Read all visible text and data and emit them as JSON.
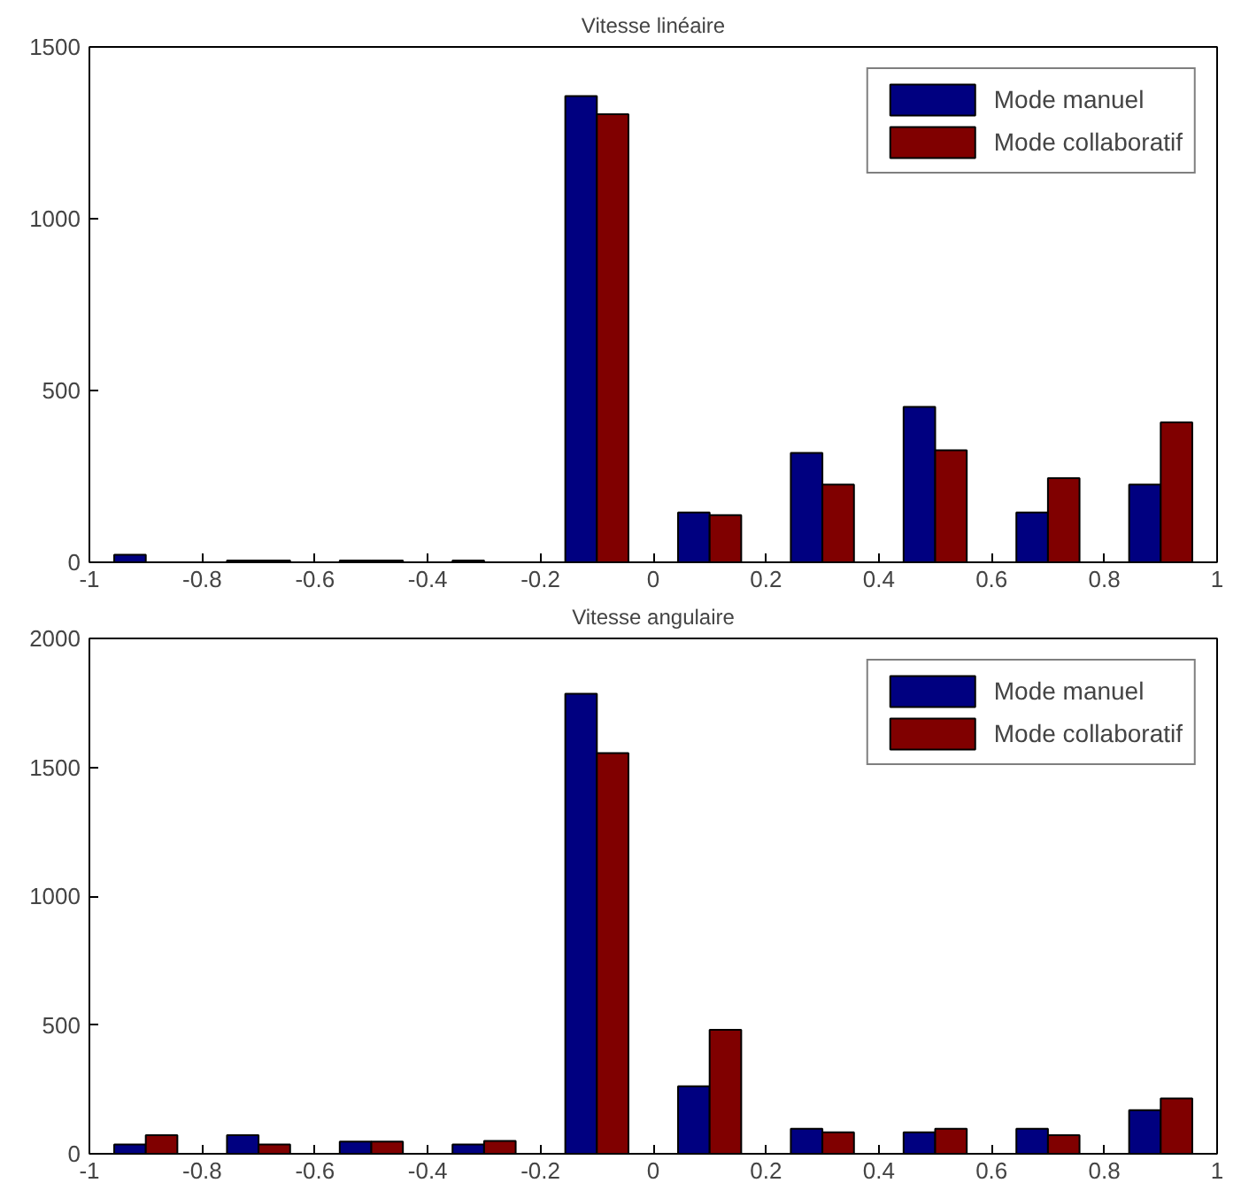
{
  "chart_data": [
    {
      "type": "bar",
      "title": "Vitesse linéaire",
      "x": [
        -0.9,
        -0.7,
        -0.5,
        -0.3,
        -0.1,
        0.1,
        0.3,
        0.5,
        0.7,
        0.9
      ],
      "xlim": [
        -1,
        1
      ],
      "xticks": [
        -1,
        -0.8,
        -0.6,
        -0.4,
        -0.2,
        0,
        0.2,
        0.4,
        0.6,
        0.8,
        1
      ],
      "ylim": [
        0,
        1500
      ],
      "yticks": [
        0,
        500,
        1000,
        1500
      ],
      "grid": false,
      "legend": "top right",
      "series": [
        {
          "name": "Mode manuel",
          "color": "#000080",
          "values": [
            22,
            5,
            5,
            5,
            1357,
            145,
            318,
            452,
            145,
            226
          ]
        },
        {
          "name": "Mode collaboratif",
          "color": "#800000",
          "values": [
            null,
            5,
            5,
            null,
            1304,
            137,
            226,
            326,
            245,
            407
          ]
        }
      ]
    },
    {
      "type": "bar",
      "title": "Vitesse angulaire",
      "x": [
        -0.9,
        -0.7,
        -0.5,
        -0.3,
        -0.1,
        0.1,
        0.3,
        0.5,
        0.7,
        0.9
      ],
      "xlim": [
        -1,
        1
      ],
      "xticks": [
        -1,
        -0.8,
        -0.6,
        -0.4,
        -0.2,
        0,
        0.2,
        0.4,
        0.6,
        0.8,
        1
      ],
      "ylim": [
        0,
        2000
      ],
      "yticks": [
        0,
        500,
        1000,
        1500,
        2000
      ],
      "grid": false,
      "legend": "top right",
      "series": [
        {
          "name": "Mode manuel",
          "color": "#000080",
          "values": [
            36,
            72,
            47,
            36,
            1785,
            262,
            97,
            83,
            97,
            169
          ]
        },
        {
          "name": "Mode collaboratif",
          "color": "#800000",
          "values": [
            72,
            36,
            47,
            50,
            1555,
            481,
            83,
            97,
            72,
            215
          ]
        }
      ]
    }
  ]
}
